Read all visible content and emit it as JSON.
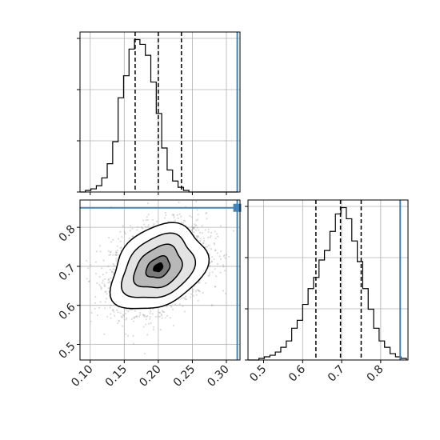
{
  "chart_data": [
    {
      "type": "histogram",
      "panel": "top-left",
      "parameter": "x",
      "xlim": [
        0.085,
        0.32
      ],
      "bin_edges": [
        0.085,
        0.093,
        0.101,
        0.109,
        0.117,
        0.125,
        0.133,
        0.141,
        0.149,
        0.157,
        0.165,
        0.173,
        0.181,
        0.189,
        0.197,
        0.205,
        0.213,
        0.221,
        0.229,
        0.237,
        0.245,
        0.253,
        0.261,
        0.269,
        0.277,
        0.285,
        0.293,
        0.301,
        0.309,
        0.317
      ],
      "counts": [
        0,
        1,
        2,
        4,
        9,
        18,
        32,
        60,
        74,
        91,
        97,
        94,
        87,
        70,
        50,
        28,
        14,
        7,
        3,
        1,
        0,
        0,
        0,
        0,
        0,
        0,
        0,
        0,
        0
      ],
      "quantiles": [
        0.166,
        0.2,
        0.234
      ],
      "truth": 0.316,
      "xticks": [],
      "grid": true
    },
    {
      "type": "histogram",
      "panel": "bottom-right",
      "parameter": "y",
      "xlim": [
        0.46,
        0.87
      ],
      "xtick_labels": [
        "0.5",
        "0.6",
        "0.7",
        "0.8"
      ],
      "xtick_values": [
        0.5,
        0.6,
        0.7,
        0.8
      ],
      "bin_edges": [
        0.46,
        0.474,
        0.488,
        0.502,
        0.516,
        0.53,
        0.544,
        0.558,
        0.572,
        0.586,
        0.6,
        0.614,
        0.628,
        0.642,
        0.656,
        0.67,
        0.684,
        0.698,
        0.712,
        0.726,
        0.74,
        0.754,
        0.768,
        0.782,
        0.796,
        0.81,
        0.824,
        0.838,
        0.852,
        0.866
      ],
      "counts": [
        0,
        0,
        1,
        2,
        3,
        5,
        8,
        12,
        20,
        25,
        35,
        45,
        52,
        63,
        69,
        81,
        92,
        96,
        89,
        75,
        62,
        45,
        32,
        20,
        12,
        8,
        4,
        2,
        1
      ],
      "quantiles": [
        0.634,
        0.697,
        0.75
      ],
      "truth": 0.85,
      "grid": true
    },
    {
      "type": "scatter",
      "panel": "bottom-left",
      "x_parameter": "x",
      "y_parameter": "y",
      "xlim": [
        0.085,
        0.32
      ],
      "ylim": [
        0.46,
        0.87
      ],
      "xtick_labels": [
        "0.10",
        "0.15",
        "0.20",
        "0.25",
        "0.30"
      ],
      "xtick_values": [
        0.1,
        0.15,
        0.2,
        0.25,
        0.3
      ],
      "ytick_labels": [
        "0.5",
        "0.6",
        "0.7",
        "0.8"
      ],
      "ytick_values": [
        0.5,
        0.6,
        0.7,
        0.8
      ],
      "mean": [
        0.2,
        0.697
      ],
      "std": [
        0.035,
        0.055
      ],
      "correlation": 0.3,
      "contour_levels_sigma": [
        0.5,
        1.0,
        1.5,
        2.0
      ],
      "truth": [
        0.316,
        0.85
      ],
      "grid": true
    }
  ],
  "colors": {
    "truth": "#4682b4",
    "line": "#000000",
    "grid": "#b0b0b0",
    "points": "#9a9a9a"
  }
}
